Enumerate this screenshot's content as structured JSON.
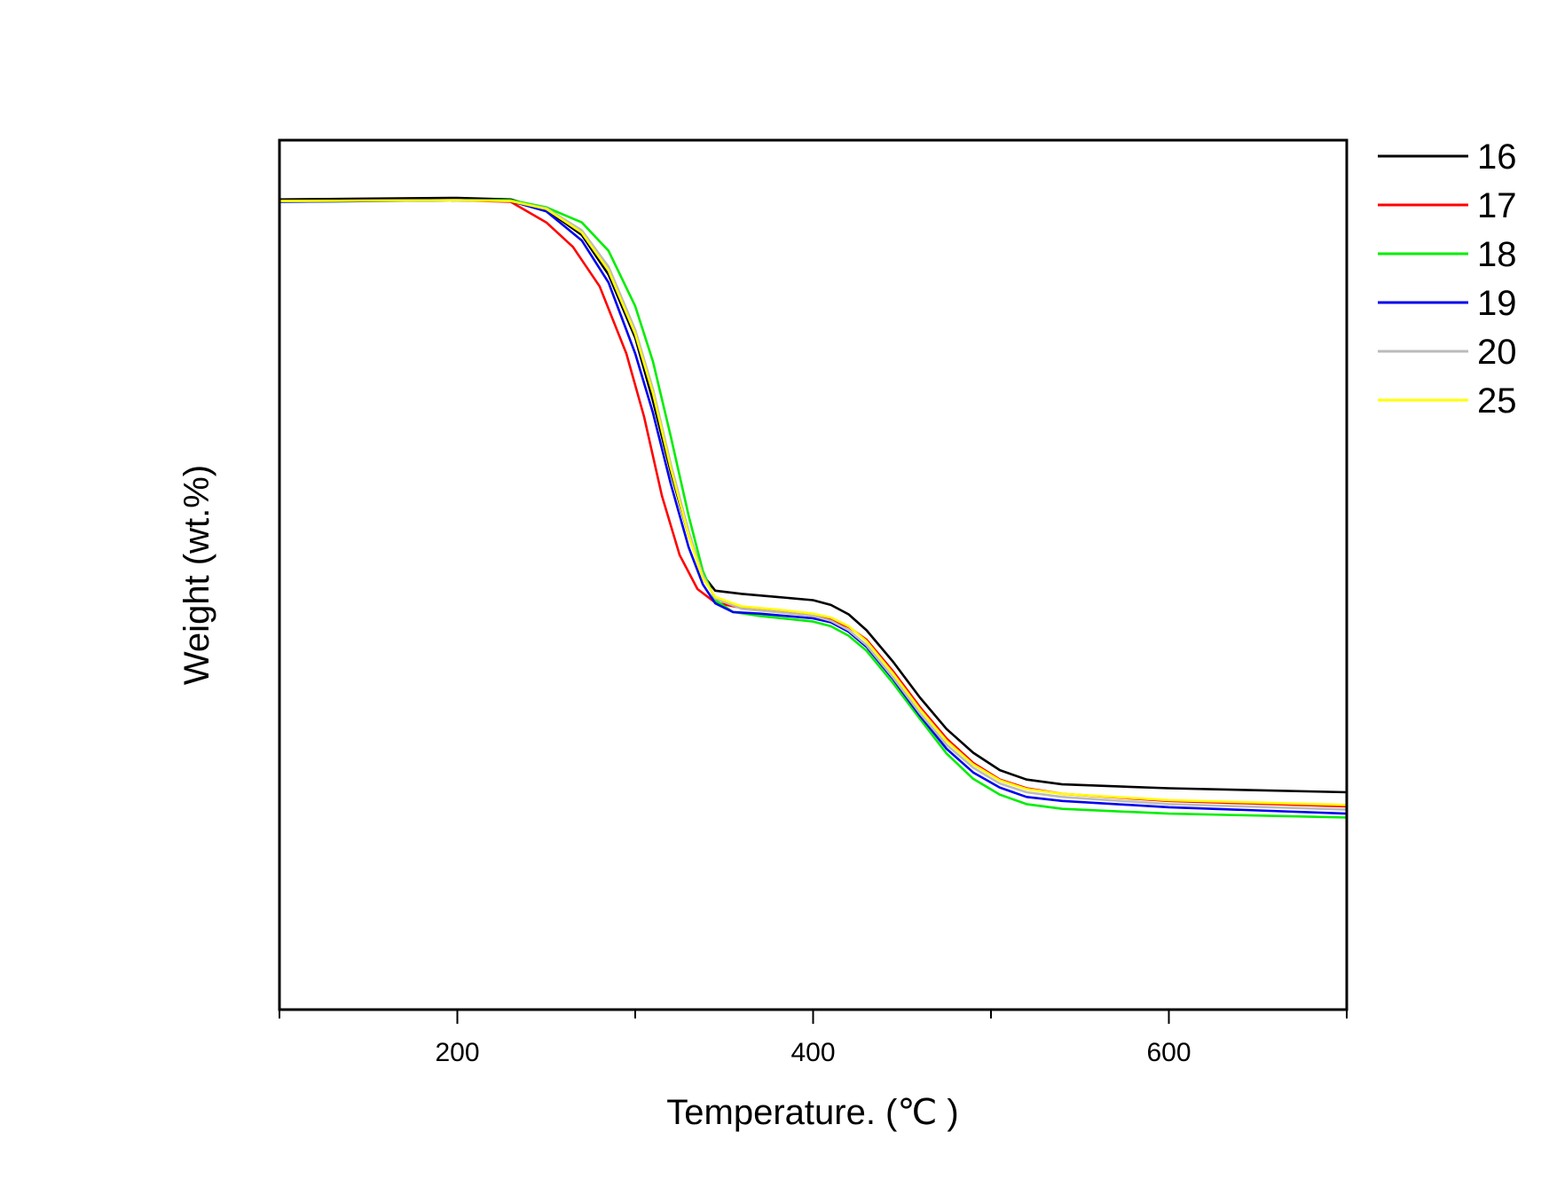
{
  "chart_data": {
    "type": "line",
    "title": "",
    "xlabel": "Temperature. (℃ )",
    "ylabel": "Weight (wt.%)",
    "xlim": [
      100,
      700
    ],
    "ylim": [
      0,
      110
    ],
    "x_ticks": [
      200,
      400,
      600
    ],
    "x_tick_labels": [
      "200",
      "400",
      "600"
    ],
    "x_minor_ticks": [
      100,
      300,
      500,
      700
    ],
    "y_tick_labels_shown": false,
    "grid": false,
    "legend_position": "outside-right-top",
    "series": [
      {
        "name": "16",
        "color": "#000000",
        "points": [
          [
            100,
            102.5
          ],
          [
            200,
            102.7
          ],
          [
            230,
            102.5
          ],
          [
            250,
            101.2
          ],
          [
            270,
            98
          ],
          [
            285,
            93
          ],
          [
            300,
            85
          ],
          [
            310,
            77
          ],
          [
            320,
            68
          ],
          [
            330,
            60
          ],
          [
            338,
            55
          ],
          [
            345,
            53
          ],
          [
            360,
            52.6
          ],
          [
            380,
            52.2
          ],
          [
            400,
            51.8
          ],
          [
            410,
            51.2
          ],
          [
            420,
            50
          ],
          [
            430,
            48
          ],
          [
            445,
            44
          ],
          [
            460,
            39.5
          ],
          [
            475,
            35.5
          ],
          [
            490,
            32.5
          ],
          [
            505,
            30.3
          ],
          [
            520,
            29.1
          ],
          [
            540,
            28.5
          ],
          [
            600,
            28
          ],
          [
            700,
            27.5
          ]
        ]
      },
      {
        "name": "17",
        "color": "#ff0000",
        "points": [
          [
            100,
            102.3
          ],
          [
            200,
            102.4
          ],
          [
            230,
            102.2
          ],
          [
            250,
            99.6
          ],
          [
            265,
            96.5
          ],
          [
            280,
            91.5
          ],
          [
            295,
            83
          ],
          [
            305,
            75
          ],
          [
            315,
            65
          ],
          [
            325,
            57.5
          ],
          [
            335,
            53.2
          ],
          [
            345,
            51.5
          ],
          [
            360,
            50.8
          ],
          [
            380,
            50.4
          ],
          [
            400,
            49.8
          ],
          [
            410,
            49.3
          ],
          [
            420,
            48.4
          ],
          [
            430,
            46.8
          ],
          [
            445,
            42.8
          ],
          [
            460,
            38.3
          ],
          [
            475,
            34.3
          ],
          [
            490,
            31.2
          ],
          [
            505,
            29.1
          ],
          [
            520,
            28
          ],
          [
            540,
            27.3
          ],
          [
            600,
            26.4
          ],
          [
            700,
            25.7
          ]
        ]
      },
      {
        "name": "18",
        "color": "#00ee00",
        "points": [
          [
            100,
            102.2
          ],
          [
            200,
            102.4
          ],
          [
            230,
            102.4
          ],
          [
            250,
            101.5
          ],
          [
            270,
            99.6
          ],
          [
            285,
            96
          ],
          [
            300,
            89
          ],
          [
            310,
            82
          ],
          [
            320,
            72.5
          ],
          [
            330,
            62.5
          ],
          [
            338,
            55.5
          ],
          [
            345,
            51.8
          ],
          [
            355,
            50.3
          ],
          [
            370,
            49.8
          ],
          [
            400,
            49.1
          ],
          [
            410,
            48.5
          ],
          [
            420,
            47.3
          ],
          [
            430,
            45.4
          ],
          [
            445,
            41.3
          ],
          [
            460,
            36.8
          ],
          [
            475,
            32.4
          ],
          [
            490,
            29.2
          ],
          [
            505,
            27.2
          ],
          [
            520,
            26
          ],
          [
            540,
            25.4
          ],
          [
            600,
            24.8
          ],
          [
            700,
            24.3
          ]
        ]
      },
      {
        "name": "19",
        "color": "#0000ee",
        "points": [
          [
            100,
            102.2
          ],
          [
            200,
            102.4
          ],
          [
            230,
            102.3
          ],
          [
            250,
            101
          ],
          [
            270,
            97.3
          ],
          [
            285,
            92
          ],
          [
            300,
            83
          ],
          [
            310,
            75.5
          ],
          [
            320,
            66.5
          ],
          [
            330,
            58.5
          ],
          [
            338,
            53.8
          ],
          [
            345,
            51.4
          ],
          [
            355,
            50.3
          ],
          [
            370,
            50.1
          ],
          [
            400,
            49.5
          ],
          [
            410,
            49
          ],
          [
            420,
            47.8
          ],
          [
            430,
            45.9
          ],
          [
            445,
            41.8
          ],
          [
            460,
            37.2
          ],
          [
            475,
            33
          ],
          [
            490,
            30
          ],
          [
            505,
            28.1
          ],
          [
            520,
            26.9
          ],
          [
            540,
            26.4
          ],
          [
            600,
            25.6
          ],
          [
            700,
            24.8
          ]
        ]
      },
      {
        "name": "20",
        "color": "#bbbbbb",
        "points": [
          [
            100,
            102.3
          ],
          [
            200,
            102.4
          ],
          [
            230,
            102.3
          ],
          [
            250,
            101.4
          ],
          [
            270,
            98.6
          ],
          [
            285,
            94
          ],
          [
            300,
            86
          ],
          [
            310,
            78.5
          ],
          [
            320,
            69
          ],
          [
            330,
            60.5
          ],
          [
            338,
            55
          ],
          [
            345,
            52
          ],
          [
            360,
            50.7
          ],
          [
            380,
            50.3
          ],
          [
            400,
            49.8
          ],
          [
            410,
            49.2
          ],
          [
            420,
            48
          ],
          [
            430,
            46.1
          ],
          [
            445,
            42
          ],
          [
            460,
            37.5
          ],
          [
            475,
            33.5
          ],
          [
            490,
            30.6
          ],
          [
            505,
            28.6
          ],
          [
            520,
            27.5
          ],
          [
            540,
            26.9
          ],
          [
            600,
            26
          ],
          [
            700,
            25.3
          ]
        ]
      },
      {
        "name": "25",
        "color": "#ffff00",
        "points": [
          [
            100,
            102.3
          ],
          [
            200,
            102.4
          ],
          [
            230,
            102.3
          ],
          [
            250,
            101.3
          ],
          [
            270,
            98.3
          ],
          [
            285,
            93.5
          ],
          [
            300,
            85.5
          ],
          [
            310,
            78
          ],
          [
            320,
            68.5
          ],
          [
            330,
            60
          ],
          [
            338,
            54.6
          ],
          [
            345,
            52.2
          ],
          [
            360,
            51
          ],
          [
            380,
            50.6
          ],
          [
            400,
            50.1
          ],
          [
            410,
            49.6
          ],
          [
            420,
            48.5
          ],
          [
            430,
            46.6
          ],
          [
            445,
            42.5
          ],
          [
            460,
            38
          ],
          [
            475,
            34
          ],
          [
            490,
            31
          ],
          [
            505,
            29
          ],
          [
            520,
            27.9
          ],
          [
            540,
            27.3
          ],
          [
            600,
            26.5
          ],
          [
            700,
            25.9
          ]
        ]
      }
    ]
  }
}
